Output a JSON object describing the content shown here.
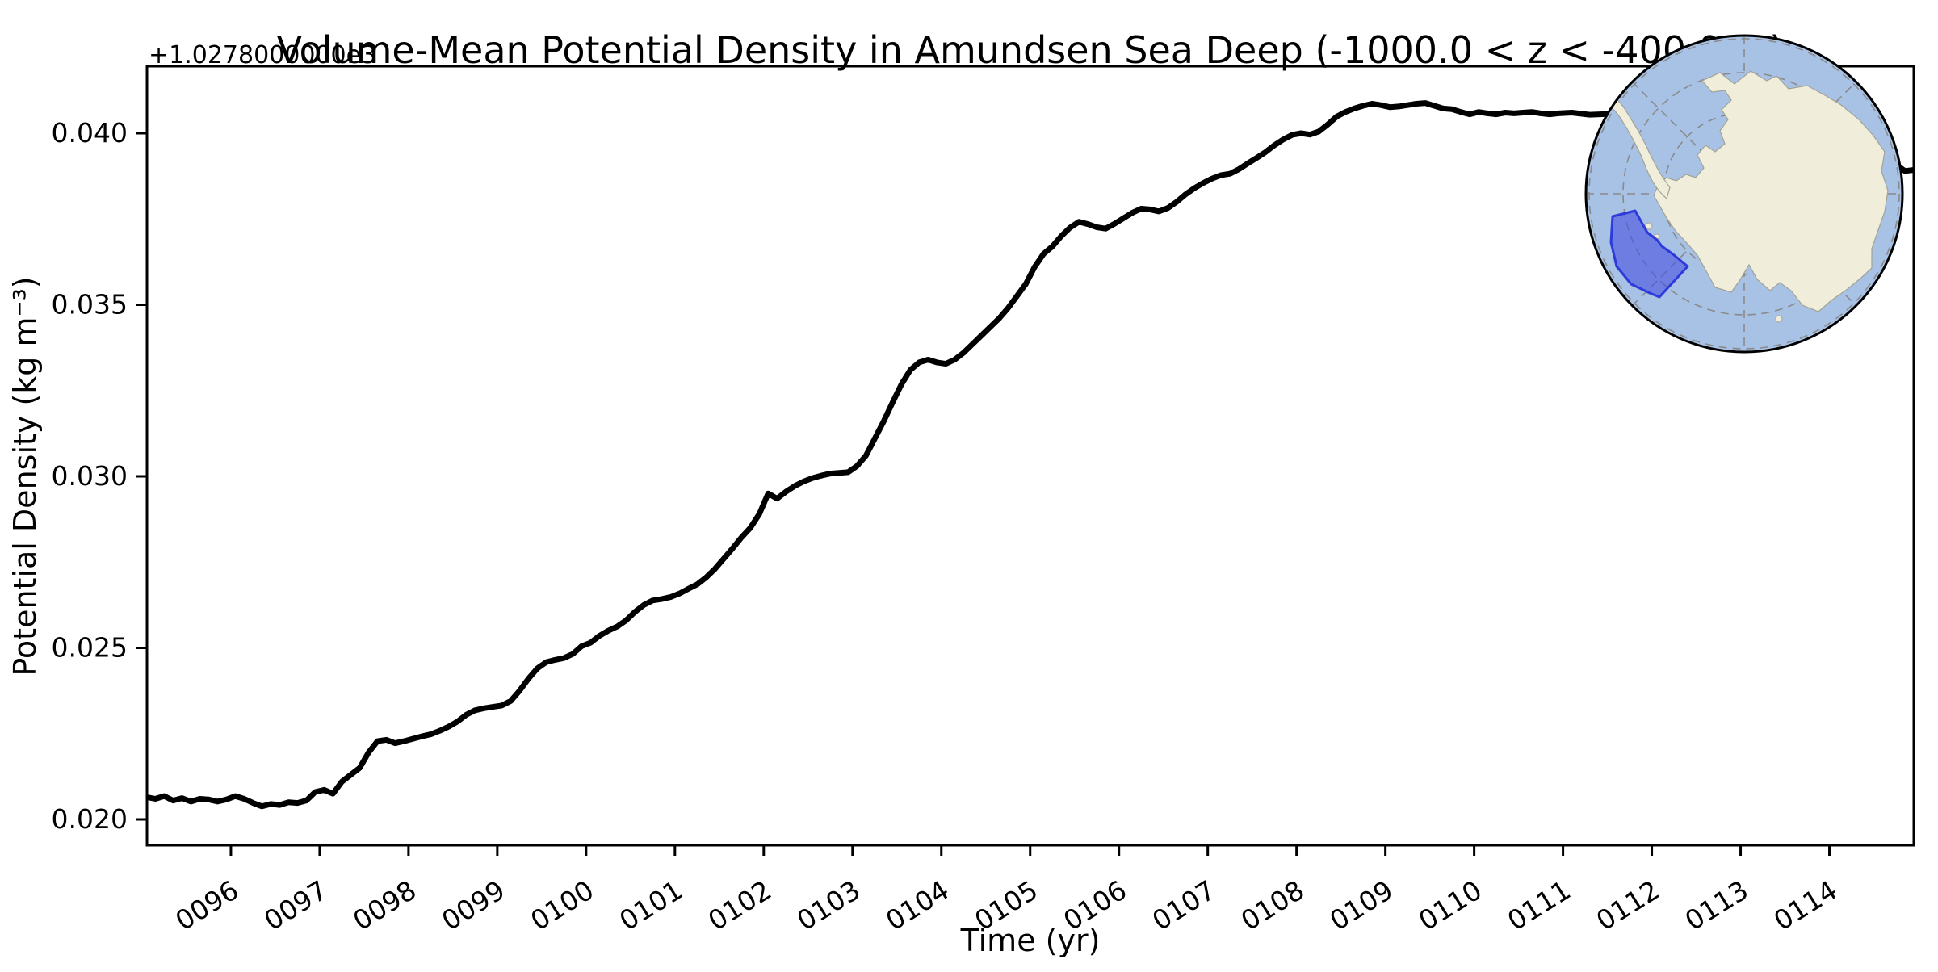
{
  "title": "Volume-Mean Potential Density in Amundsen Sea Deep (-1000.0 < z < -400.0 m)",
  "axes": {
    "xlabel": "Time (yr)",
    "ylabel": "Potential Density (kg m⁻³)",
    "y_offset_text": "+1.0278000000e3",
    "x_tick_labels": [
      "0096",
      "0097",
      "0098",
      "0099",
      "0100",
      "0101",
      "0102",
      "0103",
      "0104",
      "0105",
      "0106",
      "0107",
      "0108",
      "0109",
      "0110",
      "0111",
      "0112",
      "0113",
      "0114"
    ],
    "x_tick_years": [
      96,
      97,
      98,
      99,
      100,
      101,
      102,
      103,
      104,
      105,
      106,
      107,
      108,
      109,
      110,
      111,
      112,
      113,
      114
    ],
    "y_tick_labels": [
      "0.020",
      "0.025",
      "0.030",
      "0.035",
      "0.040"
    ],
    "y_tick_values": [
      0.02,
      0.025,
      0.03,
      0.035,
      0.04
    ]
  },
  "chart_data": {
    "type": "line",
    "title": "Volume-Mean Potential Density in Amundsen Sea Deep (-1000.0 < z < -400.0 m)",
    "xlabel": "Time (yr)",
    "ylabel": "Potential Density (kg m⁻³)",
    "y_offset": "+1.0278000000e3",
    "xlim": [
      95.055,
      114.95
    ],
    "ylim": [
      0.019247,
      0.041953
    ],
    "grid": false,
    "legend": "none",
    "line_color": "#000000",
    "points": [
      [
        95.05,
        0.02065
      ],
      [
        95.15,
        0.0206
      ],
      [
        95.25,
        0.02068
      ],
      [
        95.35,
        0.02055
      ],
      [
        95.45,
        0.02062
      ],
      [
        95.55,
        0.02052
      ],
      [
        95.65,
        0.0206
      ],
      [
        95.75,
        0.02058
      ],
      [
        95.85,
        0.02052
      ],
      [
        95.95,
        0.02058
      ],
      [
        96.05,
        0.02068
      ],
      [
        96.15,
        0.0206
      ],
      [
        96.25,
        0.02048
      ],
      [
        96.35,
        0.02038
      ],
      [
        96.45,
        0.02045
      ],
      [
        96.55,
        0.02042
      ],
      [
        96.65,
        0.0205
      ],
      [
        96.75,
        0.02048
      ],
      [
        96.85,
        0.02055
      ],
      [
        96.95,
        0.0208
      ],
      [
        97.05,
        0.02086
      ],
      [
        97.15,
        0.02075
      ],
      [
        97.25,
        0.0211
      ],
      [
        97.35,
        0.0213
      ],
      [
        97.45,
        0.0215
      ],
      [
        97.55,
        0.02195
      ],
      [
        97.65,
        0.02228
      ],
      [
        97.75,
        0.02232
      ],
      [
        97.85,
        0.02222
      ],
      [
        97.95,
        0.02228
      ],
      [
        98.05,
        0.02235
      ],
      [
        98.15,
        0.02242
      ],
      [
        98.25,
        0.02248
      ],
      [
        98.35,
        0.02258
      ],
      [
        98.45,
        0.0227
      ],
      [
        98.55,
        0.02285
      ],
      [
        98.65,
        0.02305
      ],
      [
        98.75,
        0.02318
      ],
      [
        98.85,
        0.02324
      ],
      [
        98.95,
        0.02328
      ],
      [
        99.05,
        0.02332
      ],
      [
        99.15,
        0.02345
      ],
      [
        99.25,
        0.02375
      ],
      [
        99.35,
        0.0241
      ],
      [
        99.45,
        0.0244
      ],
      [
        99.55,
        0.02458
      ],
      [
        99.65,
        0.02465
      ],
      [
        99.75,
        0.0247
      ],
      [
        99.85,
        0.02482
      ],
      [
        99.95,
        0.02505
      ],
      [
        100.05,
        0.02515
      ],
      [
        100.15,
        0.02535
      ],
      [
        100.25,
        0.0255
      ],
      [
        100.35,
        0.02562
      ],
      [
        100.45,
        0.0258
      ],
      [
        100.55,
        0.02605
      ],
      [
        100.65,
        0.02625
      ],
      [
        100.75,
        0.02638
      ],
      [
        100.85,
        0.02642
      ],
      [
        100.95,
        0.02648
      ],
      [
        101.05,
        0.02658
      ],
      [
        101.15,
        0.02672
      ],
      [
        101.25,
        0.02685
      ],
      [
        101.35,
        0.02705
      ],
      [
        101.45,
        0.0273
      ],
      [
        101.55,
        0.0276
      ],
      [
        101.65,
        0.0279
      ],
      [
        101.75,
        0.02822
      ],
      [
        101.85,
        0.0285
      ],
      [
        101.95,
        0.0289
      ],
      [
        102.05,
        0.0295
      ],
      [
        102.15,
        0.02935
      ],
      [
        102.25,
        0.02955
      ],
      [
        102.35,
        0.02972
      ],
      [
        102.45,
        0.02985
      ],
      [
        102.55,
        0.02995
      ],
      [
        102.65,
        0.03002
      ],
      [
        102.75,
        0.03008
      ],
      [
        102.85,
        0.0301
      ],
      [
        102.95,
        0.03012
      ],
      [
        103.05,
        0.0303
      ],
      [
        103.15,
        0.0306
      ],
      [
        103.25,
        0.0311
      ],
      [
        103.35,
        0.0316
      ],
      [
        103.45,
        0.03215
      ],
      [
        103.55,
        0.03268
      ],
      [
        103.65,
        0.0331
      ],
      [
        103.75,
        0.03332
      ],
      [
        103.85,
        0.0334
      ],
      [
        103.95,
        0.03332
      ],
      [
        104.05,
        0.03328
      ],
      [
        104.15,
        0.0334
      ],
      [
        104.25,
        0.0336
      ],
      [
        104.35,
        0.03385
      ],
      [
        104.45,
        0.0341
      ],
      [
        104.55,
        0.03435
      ],
      [
        104.65,
        0.0346
      ],
      [
        104.75,
        0.0349
      ],
      [
        104.85,
        0.03525
      ],
      [
        104.95,
        0.0356
      ],
      [
        105.05,
        0.0361
      ],
      [
        105.15,
        0.03648
      ],
      [
        105.25,
        0.0367
      ],
      [
        105.35,
        0.037
      ],
      [
        105.45,
        0.03725
      ],
      [
        105.55,
        0.03742
      ],
      [
        105.65,
        0.03735
      ],
      [
        105.75,
        0.03726
      ],
      [
        105.85,
        0.03722
      ],
      [
        105.95,
        0.03736
      ],
      [
        106.05,
        0.03752
      ],
      [
        106.15,
        0.03768
      ],
      [
        106.25,
        0.0378
      ],
      [
        106.35,
        0.03778
      ],
      [
        106.45,
        0.03772
      ],
      [
        106.55,
        0.03782
      ],
      [
        106.65,
        0.038
      ],
      [
        106.75,
        0.03822
      ],
      [
        106.85,
        0.0384
      ],
      [
        106.95,
        0.03855
      ],
      [
        107.05,
        0.03868
      ],
      [
        107.15,
        0.03878
      ],
      [
        107.25,
        0.03882
      ],
      [
        107.35,
        0.03895
      ],
      [
        107.45,
        0.03912
      ],
      [
        107.55,
        0.03928
      ],
      [
        107.65,
        0.03945
      ],
      [
        107.75,
        0.03965
      ],
      [
        107.85,
        0.03982
      ],
      [
        107.95,
        0.03995
      ],
      [
        108.05,
        0.04
      ],
      [
        108.15,
        0.03996
      ],
      [
        108.25,
        0.04005
      ],
      [
        108.35,
        0.04025
      ],
      [
        108.45,
        0.04048
      ],
      [
        108.55,
        0.04062
      ],
      [
        108.65,
        0.04072
      ],
      [
        108.75,
        0.0408
      ],
      [
        108.85,
        0.04086
      ],
      [
        108.95,
        0.04082
      ],
      [
        109.05,
        0.04076
      ],
      [
        109.15,
        0.04078
      ],
      [
        109.25,
        0.04082
      ],
      [
        109.35,
        0.04086
      ],
      [
        109.45,
        0.04088
      ],
      [
        109.55,
        0.0408
      ],
      [
        109.65,
        0.04072
      ],
      [
        109.75,
        0.0407
      ],
      [
        109.85,
        0.04062
      ],
      [
        109.95,
        0.04055
      ],
      [
        110.05,
        0.04062
      ],
      [
        110.15,
        0.04058
      ],
      [
        110.25,
        0.04055
      ],
      [
        110.35,
        0.0406
      ],
      [
        110.45,
        0.04058
      ],
      [
        110.55,
        0.0406
      ],
      [
        110.65,
        0.04062
      ],
      [
        110.75,
        0.04058
      ],
      [
        110.85,
        0.04055
      ],
      [
        110.95,
        0.04058
      ],
      [
        111.1,
        0.0406
      ],
      [
        111.3,
        0.04054
      ],
      [
        111.5,
        0.04056
      ],
      [
        111.7,
        0.0405
      ],
      [
        111.9,
        0.04044
      ],
      [
        112.1,
        0.04038
      ],
      [
        112.3,
        0.04028
      ],
      [
        112.5,
        0.04015
      ],
      [
        112.7,
        0.04002
      ],
      [
        112.9,
        0.0399
      ],
      [
        113.1,
        0.03976
      ],
      [
        113.3,
        0.03962
      ],
      [
        113.5,
        0.03952
      ],
      [
        113.7,
        0.03944
      ],
      [
        113.9,
        0.03934
      ],
      [
        114.1,
        0.03918
      ],
      [
        114.3,
        0.03895
      ],
      [
        114.45,
        0.03875
      ],
      [
        114.6,
        0.0388
      ],
      [
        114.75,
        0.03908
      ],
      [
        114.85,
        0.0389
      ],
      [
        114.95,
        0.03893
      ]
    ]
  },
  "inset_map": {
    "colors": {
      "ocean": "#a8c2e6",
      "land": "#f0eedb",
      "land_edge": "#a2a296",
      "graticule": "#8a8a8a",
      "outline": "#000000",
      "region_fill": "#4853de",
      "region_edge": "#2330d8"
    }
  }
}
